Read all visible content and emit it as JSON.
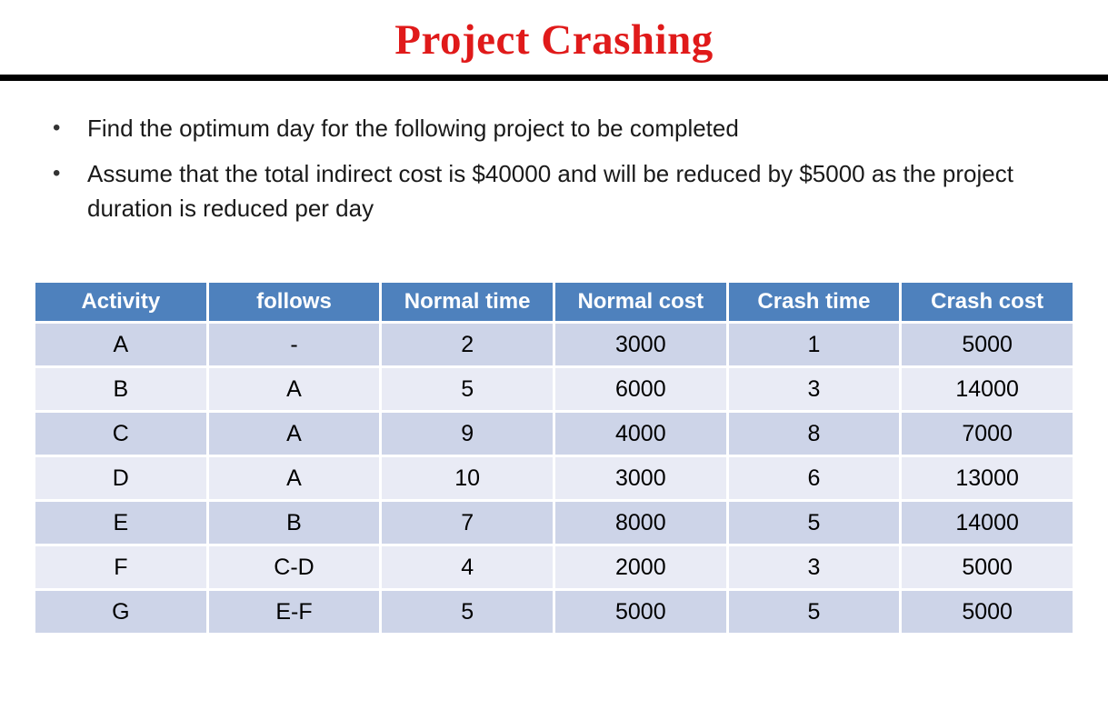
{
  "slide": {
    "title": "Project Crashing",
    "bullets": [
      "Find the optimum day for the following project to be completed",
      "Assume that the total indirect cost is $40000 and will be reduced by $5000 as the project duration is reduced per day"
    ]
  },
  "table": {
    "headers": [
      "Activity",
      "follows",
      "Normal time",
      "Normal cost",
      "Crash time",
      "Crash cost"
    ],
    "rows": [
      [
        "A",
        "-",
        "2",
        "3000",
        "1",
        "5000"
      ],
      [
        "B",
        "A",
        "5",
        "6000",
        "3",
        "14000"
      ],
      [
        "C",
        "A",
        "9",
        "4000",
        "8",
        "7000"
      ],
      [
        "D",
        "A",
        "10",
        "3000",
        "6",
        "13000"
      ],
      [
        "E",
        "B",
        "7",
        "8000",
        "5",
        "14000"
      ],
      [
        "F",
        "C-D",
        "4",
        "2000",
        "3",
        "5000"
      ],
      [
        "G",
        "E-F",
        "5",
        "5000",
        "5",
        "5000"
      ]
    ]
  },
  "colors": {
    "title_color": "#E01A1A",
    "header_bg": "#4E81BD",
    "row_odd": "#CDD4E8",
    "row_even": "#E9EBF5"
  }
}
